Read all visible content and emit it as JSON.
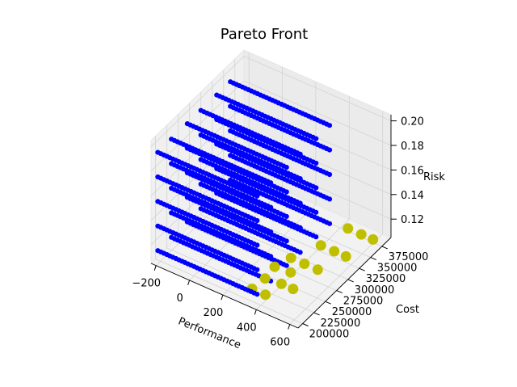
{
  "chart_data": {
    "type": "scatter",
    "projection": "3d",
    "title": "Pareto Front",
    "xlabel": "Performance",
    "ylabel": "Cost",
    "zlabel": "Risk",
    "xlim": [
      -230,
      650
    ],
    "ylim": [
      190000,
      395000
    ],
    "zlim": [
      0.105,
      0.205
    ],
    "xticks": [
      -200,
      0,
      200,
      400,
      600
    ],
    "xtick_labels": [
      "−200",
      "0",
      "200",
      "400",
      "600"
    ],
    "yticks": [
      200000,
      225000,
      250000,
      275000,
      300000,
      325000,
      350000,
      375000
    ],
    "ytick_labels": [
      "200000",
      "225000",
      "250000",
      "275000",
      "300000",
      "325000",
      "350000",
      "375000"
    ],
    "zticks": [
      0.12,
      0.14,
      0.16,
      0.18,
      0.2
    ],
    "ztick_labels": [
      "0.12",
      "0.14",
      "0.16",
      "0.18",
      "0.20"
    ],
    "grid": true,
    "series": [
      {
        "color": "#0000ff",
        "marker": "circle",
        "grid_points": {
          "risk_levels": [
            0.11,
            0.13,
            0.15,
            0.17,
            0.19
          ],
          "cost_levels": [
            205000,
            235000,
            270000,
            300000,
            335000,
            365000
          ],
          "performance_start": -230,
          "performance_step": 18,
          "points_per_row": 34
        }
      },
      {
        "color": "#bfbf00",
        "marker": "circle",
        "points": [
          {
            "x": 320,
            "y": 210000,
            "z": 0.11
          },
          {
            "x": 400,
            "y": 210000,
            "z": 0.11
          },
          {
            "x": 330,
            "y": 235000,
            "z": 0.11
          },
          {
            "x": 420,
            "y": 238000,
            "z": 0.11
          },
          {
            "x": 490,
            "y": 238000,
            "z": 0.11
          },
          {
            "x": 320,
            "y": 260000,
            "z": 0.11
          },
          {
            "x": 410,
            "y": 262000,
            "z": 0.11
          },
          {
            "x": 350,
            "y": 285000,
            "z": 0.11
          },
          {
            "x": 430,
            "y": 285000,
            "z": 0.11
          },
          {
            "x": 510,
            "y": 285000,
            "z": 0.11
          },
          {
            "x": 420,
            "y": 325000,
            "z": 0.11
          },
          {
            "x": 500,
            "y": 325000,
            "z": 0.11
          },
          {
            "x": 570,
            "y": 325000,
            "z": 0.11
          },
          {
            "x": 460,
            "y": 370000,
            "z": 0.11
          },
          {
            "x": 540,
            "y": 370000,
            "z": 0.11
          },
          {
            "x": 610,
            "y": 370000,
            "z": 0.11
          }
        ]
      }
    ]
  }
}
